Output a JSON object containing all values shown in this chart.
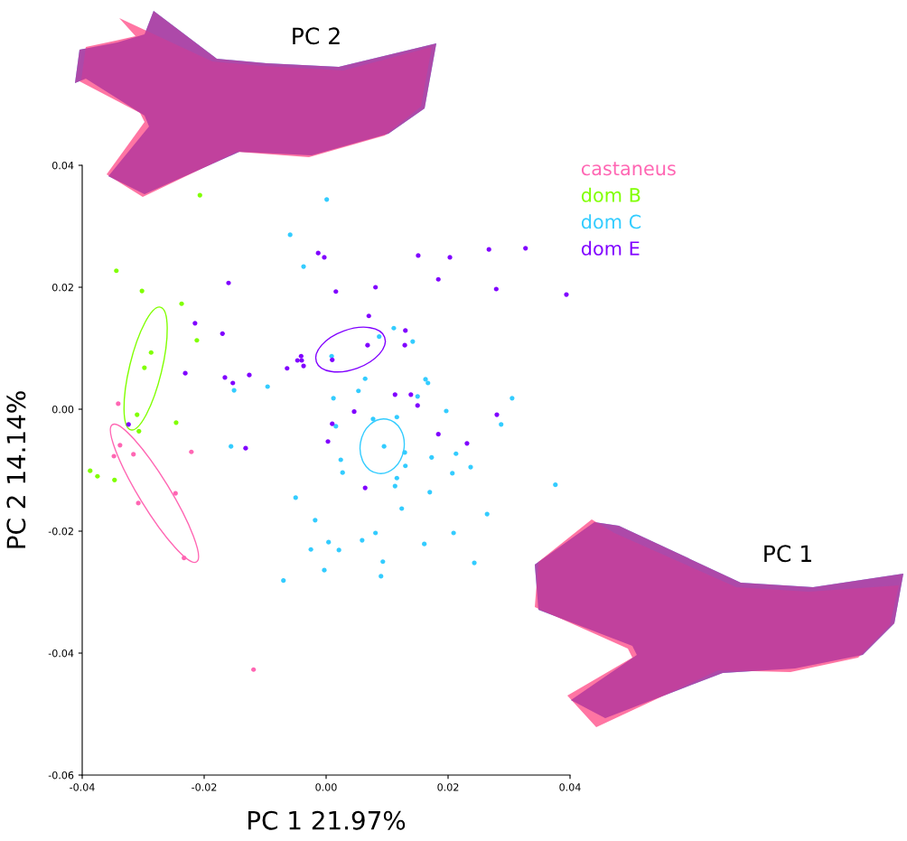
{
  "chart_data": {
    "type": "scatter",
    "xlabel": "PC 1 21.97%",
    "ylabel": "PC 2 14.14%",
    "xlim": [
      -0.04,
      0.04
    ],
    "ylim": [
      -0.06,
      0.04
    ],
    "xticks": [
      {
        "value": -0.04,
        "label": "-0.04"
      },
      {
        "value": -0.02,
        "label": "-0.02"
      },
      {
        "value": 0,
        "label": "0.00"
      },
      {
        "value": 0.02,
        "label": "0.02"
      },
      {
        "value": 0.04,
        "label": "0.04"
      }
    ],
    "yticks": [
      {
        "value": -0.06,
        "label": "-0.06"
      },
      {
        "value": -0.04,
        "label": "-0.04"
      },
      {
        "value": -0.02,
        "label": "-0.02"
      },
      {
        "value": 0,
        "label": "0.00"
      },
      {
        "value": 0.02,
        "label": "0.02"
      },
      {
        "value": 0.04,
        "label": "0.04"
      }
    ],
    "grid": false,
    "legend": "top right",
    "marker": "circle",
    "annotations": [
      "PC 2",
      "PC 1"
    ],
    "series": [
      {
        "name": "castaneus",
        "color": "#ff66b3",
        "x": [
          -0.0341,
          -0.0338,
          -0.0348,
          -0.0316,
          -0.0221,
          -0.0308,
          -0.0247,
          -0.0233,
          -0.0119
        ],
        "values": [
          0.0009,
          -0.0059,
          -0.0077,
          -0.0074,
          -0.007,
          -0.0154,
          -0.0138,
          -0.0244,
          -0.0427
        ]
      },
      {
        "name": "dom B",
        "color": "#80ff00",
        "x": [
          -0.0207,
          -0.0344,
          -0.0302,
          -0.0237,
          -0.0212,
          -0.0287,
          -0.0298,
          -0.031,
          -0.0246,
          -0.0307,
          -0.0387,
          -0.0375,
          -0.0347
        ],
        "values": [
          0.0351,
          0.0227,
          0.0194,
          0.0173,
          0.0113,
          0.0093,
          0.0068,
          -0.0009,
          -0.0022,
          -0.0036,
          -0.0101,
          -0.011,
          -0.0116
        ]
      },
      {
        "name": "dom C",
        "color": "#33ccff",
        "x": [
          -0.0059,
          -0.0037,
          -0.0151,
          -0.0096,
          0.0001,
          0.0111,
          0.0087,
          0.0142,
          0.0009,
          0.0064,
          0.0163,
          0.0167,
          0.0053,
          0.0012,
          0.015,
          0.0305,
          -0.0156,
          -0.005,
          -0.0018,
          -0.0025,
          -0.0003,
          -0.007,
          0.0197,
          0.0077,
          0.0116,
          0.0016,
          0.0287,
          0.0095,
          0.0129,
          0.0173,
          0.0213,
          0.0024,
          0.013,
          0.0027,
          0.0237,
          0.0207,
          0.0116,
          0.0113,
          0.017,
          0.0376,
          0.0124,
          0.0264,
          0.0081,
          0.0209,
          0.0004,
          0.0059,
          0.0021,
          0.0161,
          0.0093,
          0.0243,
          0.009
        ],
        "values": [
          0.0286,
          0.0234,
          0.0031,
          0.0037,
          0.0344,
          0.0133,
          0.0119,
          0.0111,
          0.0087,
          0.005,
          0.0049,
          0.0043,
          0.003,
          0.0018,
          0.0021,
          0.0018,
          -0.0061,
          -0.0145,
          -0.0182,
          -0.023,
          -0.0264,
          -0.0281,
          -0.0003,
          -0.0016,
          -0.0013,
          -0.0028,
          -0.0025,
          -0.0061,
          -0.0071,
          -0.0079,
          -0.0073,
          -0.0083,
          -0.0093,
          -0.0104,
          -0.0095,
          -0.0105,
          -0.0113,
          -0.0126,
          -0.0136,
          -0.0124,
          -0.0163,
          -0.0172,
          -0.0203,
          -0.0203,
          -0.0218,
          -0.0215,
          -0.0231,
          -0.0221,
          -0.025,
          -0.0252,
          -0.0274
        ]
      },
      {
        "name": "dom E",
        "color": "#8000ff",
        "x": [
          -0.0013,
          -0.0003,
          -0.016,
          -0.0215,
          -0.017,
          -0.0041,
          -0.0047,
          -0.004,
          -0.0037,
          -0.0064,
          -0.0231,
          -0.0166,
          -0.0153,
          -0.0126,
          0.0151,
          0.0203,
          0.0267,
          0.0327,
          0.0016,
          0.0081,
          0.0184,
          0.0279,
          0.0394,
          0.007,
          0.013,
          0.0068,
          0.0129,
          0.001,
          0.0113,
          0.0139,
          0.015,
          0.0046,
          0.001,
          0.0003,
          0.0184,
          0.0231,
          0.028,
          0.0064,
          -0.0324,
          -0.0132
        ],
        "values": [
          0.0256,
          0.0249,
          0.0207,
          0.0141,
          0.0124,
          0.0087,
          0.008,
          0.008,
          0.0071,
          0.0067,
          0.0059,
          0.0052,
          0.0043,
          0.0056,
          0.0252,
          0.0249,
          0.0262,
          0.0264,
          0.0193,
          0.02,
          0.0213,
          0.0197,
          0.0188,
          0.0153,
          0.0129,
          0.0105,
          0.0105,
          0.0081,
          0.0024,
          0.0024,
          0.0006,
          -0.0004,
          -0.0024,
          -0.0053,
          -0.0041,
          -0.0056,
          -0.0009,
          -0.0129,
          -0.0025,
          -0.0064
        ]
      }
    ]
  }
}
